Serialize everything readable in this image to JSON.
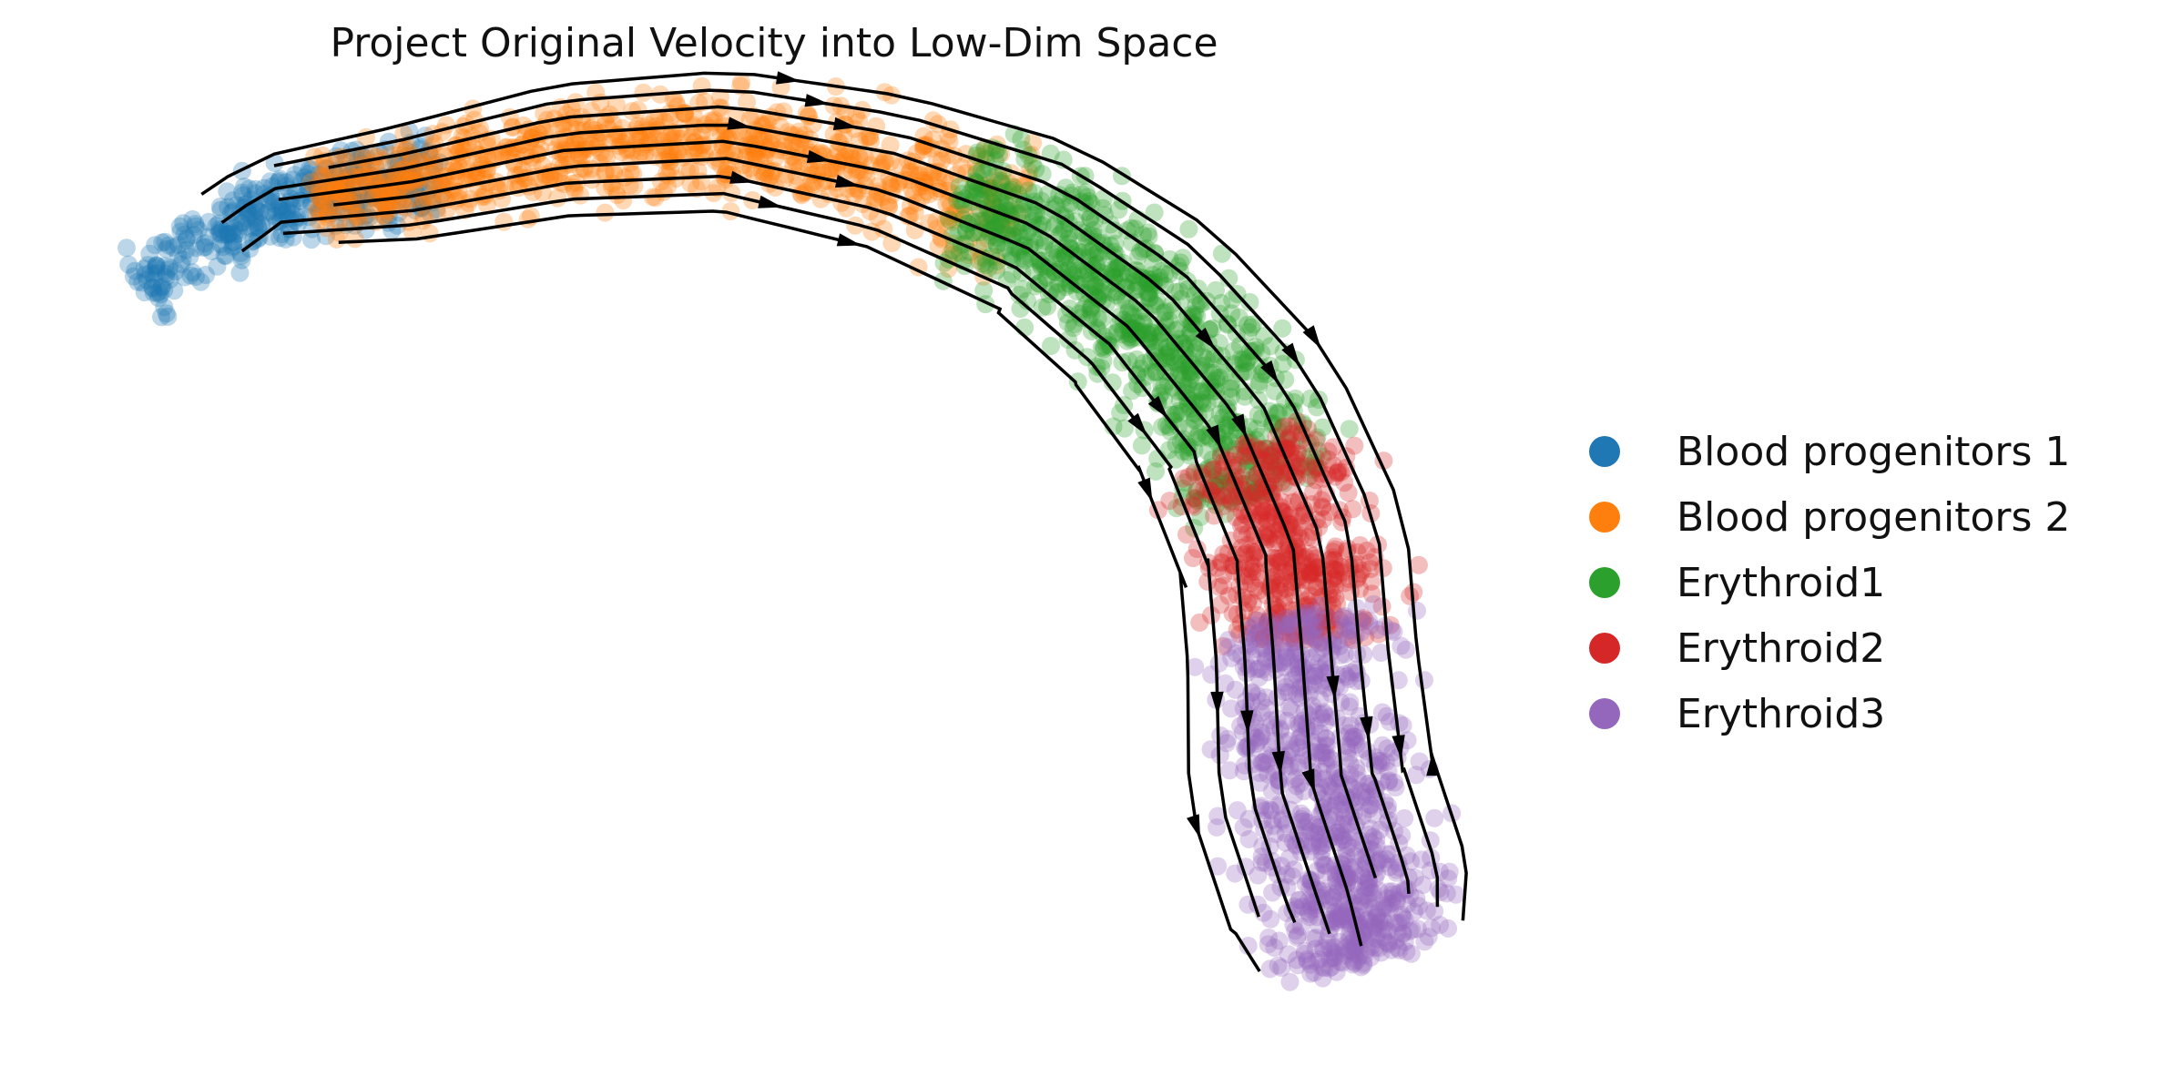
{
  "chart_data": {
    "type": "scatter",
    "title": "Project Original Velocity into Low-Dim Space",
    "xlabel": "",
    "ylabel": "",
    "axes_visible": false,
    "grid": false,
    "overlay": "velocity streamlines with arrowheads (black)",
    "legend_position": "right",
    "series": [
      {
        "name": "Blood progenitors 1",
        "color": "#1f77b4"
      },
      {
        "name": "Blood progenitors 2",
        "color": "#ff7f0e"
      },
      {
        "name": "Erythroid1",
        "color": "#2ca02c"
      },
      {
        "name": "Erythroid2",
        "color": "#d62728"
      },
      {
        "name": "Erythroid3",
        "color": "#9467bd"
      }
    ]
  }
}
